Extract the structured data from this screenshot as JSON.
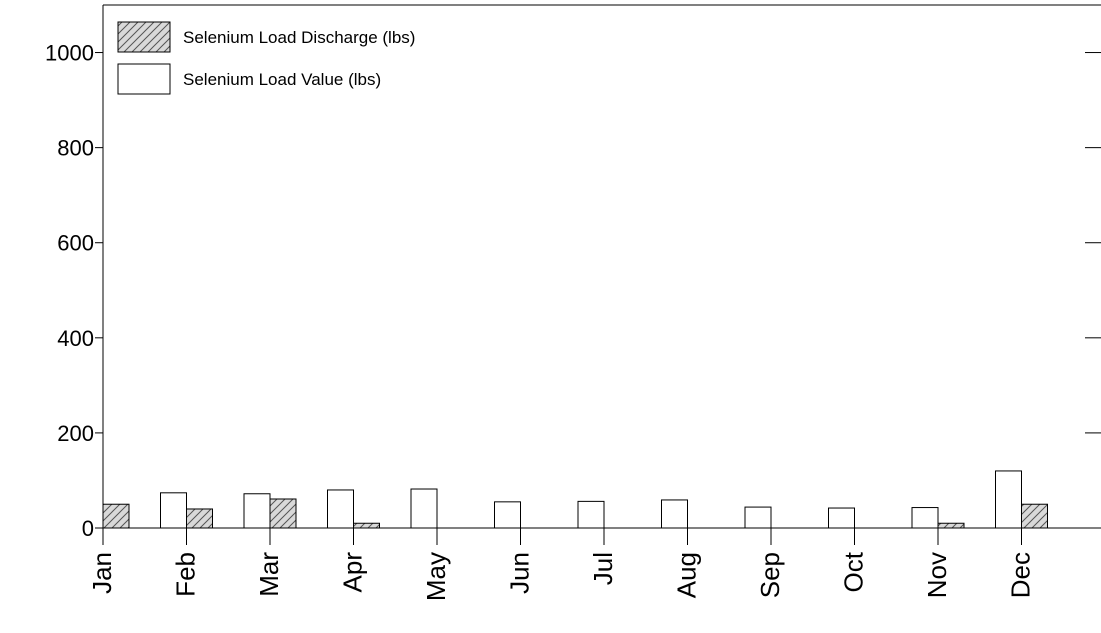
{
  "chart_data": {
    "type": "bar",
    "categories": [
      "Jan",
      "Feb",
      "Mar",
      "Apr",
      "May",
      "Jun",
      "Jul",
      "Aug",
      "Sep",
      "Oct",
      "Nov",
      "Dec"
    ],
    "series": [
      {
        "name": "Selenium Load Discharge (lbs)",
        "color": "#d9d9d9",
        "pattern": "hatch",
        "values": [
          50,
          40,
          61,
          10,
          null,
          null,
          null,
          null,
          null,
          null,
          10,
          50
        ]
      },
      {
        "name": "Selenium Load Value (lbs)",
        "color": "#ffffff",
        "values": [
          null,
          74,
          72,
          80,
          82,
          55,
          56,
          59,
          44,
          42,
          43,
          120
        ]
      }
    ],
    "ylim": [
      0,
      1100
    ],
    "yticks": [
      0,
      200,
      400,
      600,
      800,
      1000
    ],
    "grid": false,
    "legend": "top-left"
  }
}
